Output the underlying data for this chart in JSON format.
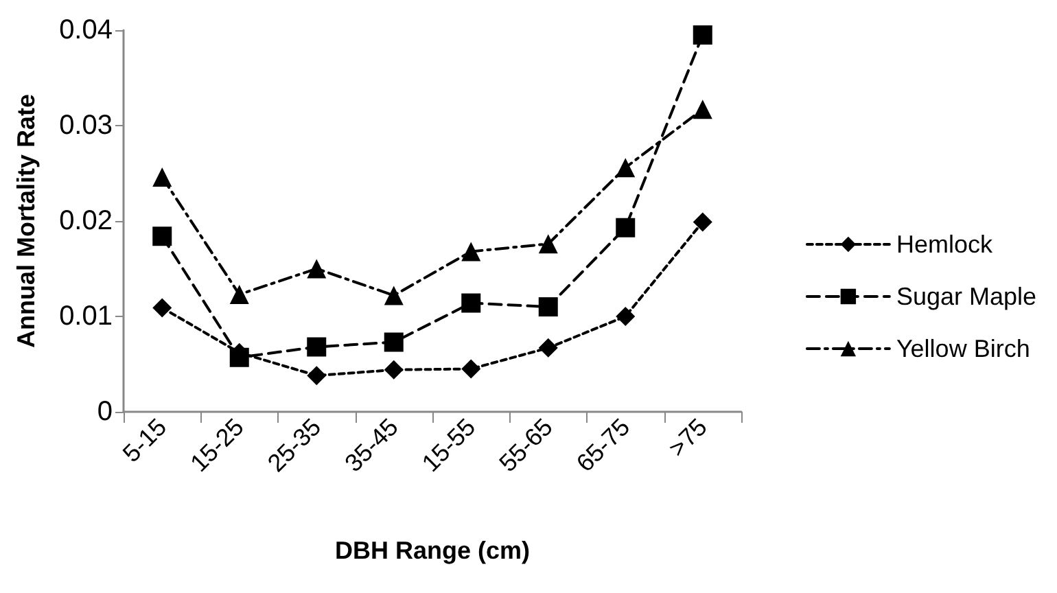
{
  "chart_data": {
    "type": "line",
    "xlabel": "DBH Range (cm)",
    "ylabel": "Annual Mortality Rate",
    "categories": [
      "5-15",
      "15-25",
      "25-35",
      "35-45",
      "15-55",
      "55-65",
      "65-75",
      ">75"
    ],
    "series": [
      {
        "name": "Hemlock",
        "color": "#000000",
        "marker": "diamond",
        "line_style": "dotted",
        "values": [
          0.0109,
          0.0062,
          0.0038,
          0.0044,
          0.0045,
          0.0067,
          0.01,
          0.0199
        ]
      },
      {
        "name": "Sugar Maple",
        "color": "#000000",
        "marker": "square",
        "line_style": "dashed",
        "values": [
          0.0184,
          0.0057,
          0.0068,
          0.0073,
          0.0114,
          0.011,
          0.0193,
          0.0395
        ]
      },
      {
        "name": "Yellow Birch",
        "color": "#000000",
        "marker": "triangle",
        "line_style": "dashdot",
        "values": [
          0.0246,
          0.0123,
          0.015,
          0.0122,
          0.0168,
          0.0176,
          0.0256,
          0.0317
        ]
      }
    ],
    "ylim": [
      0,
      0.04
    ],
    "yticks": [
      0,
      0.01,
      0.02,
      0.03,
      0.04
    ],
    "grid": false,
    "legend": "right"
  }
}
